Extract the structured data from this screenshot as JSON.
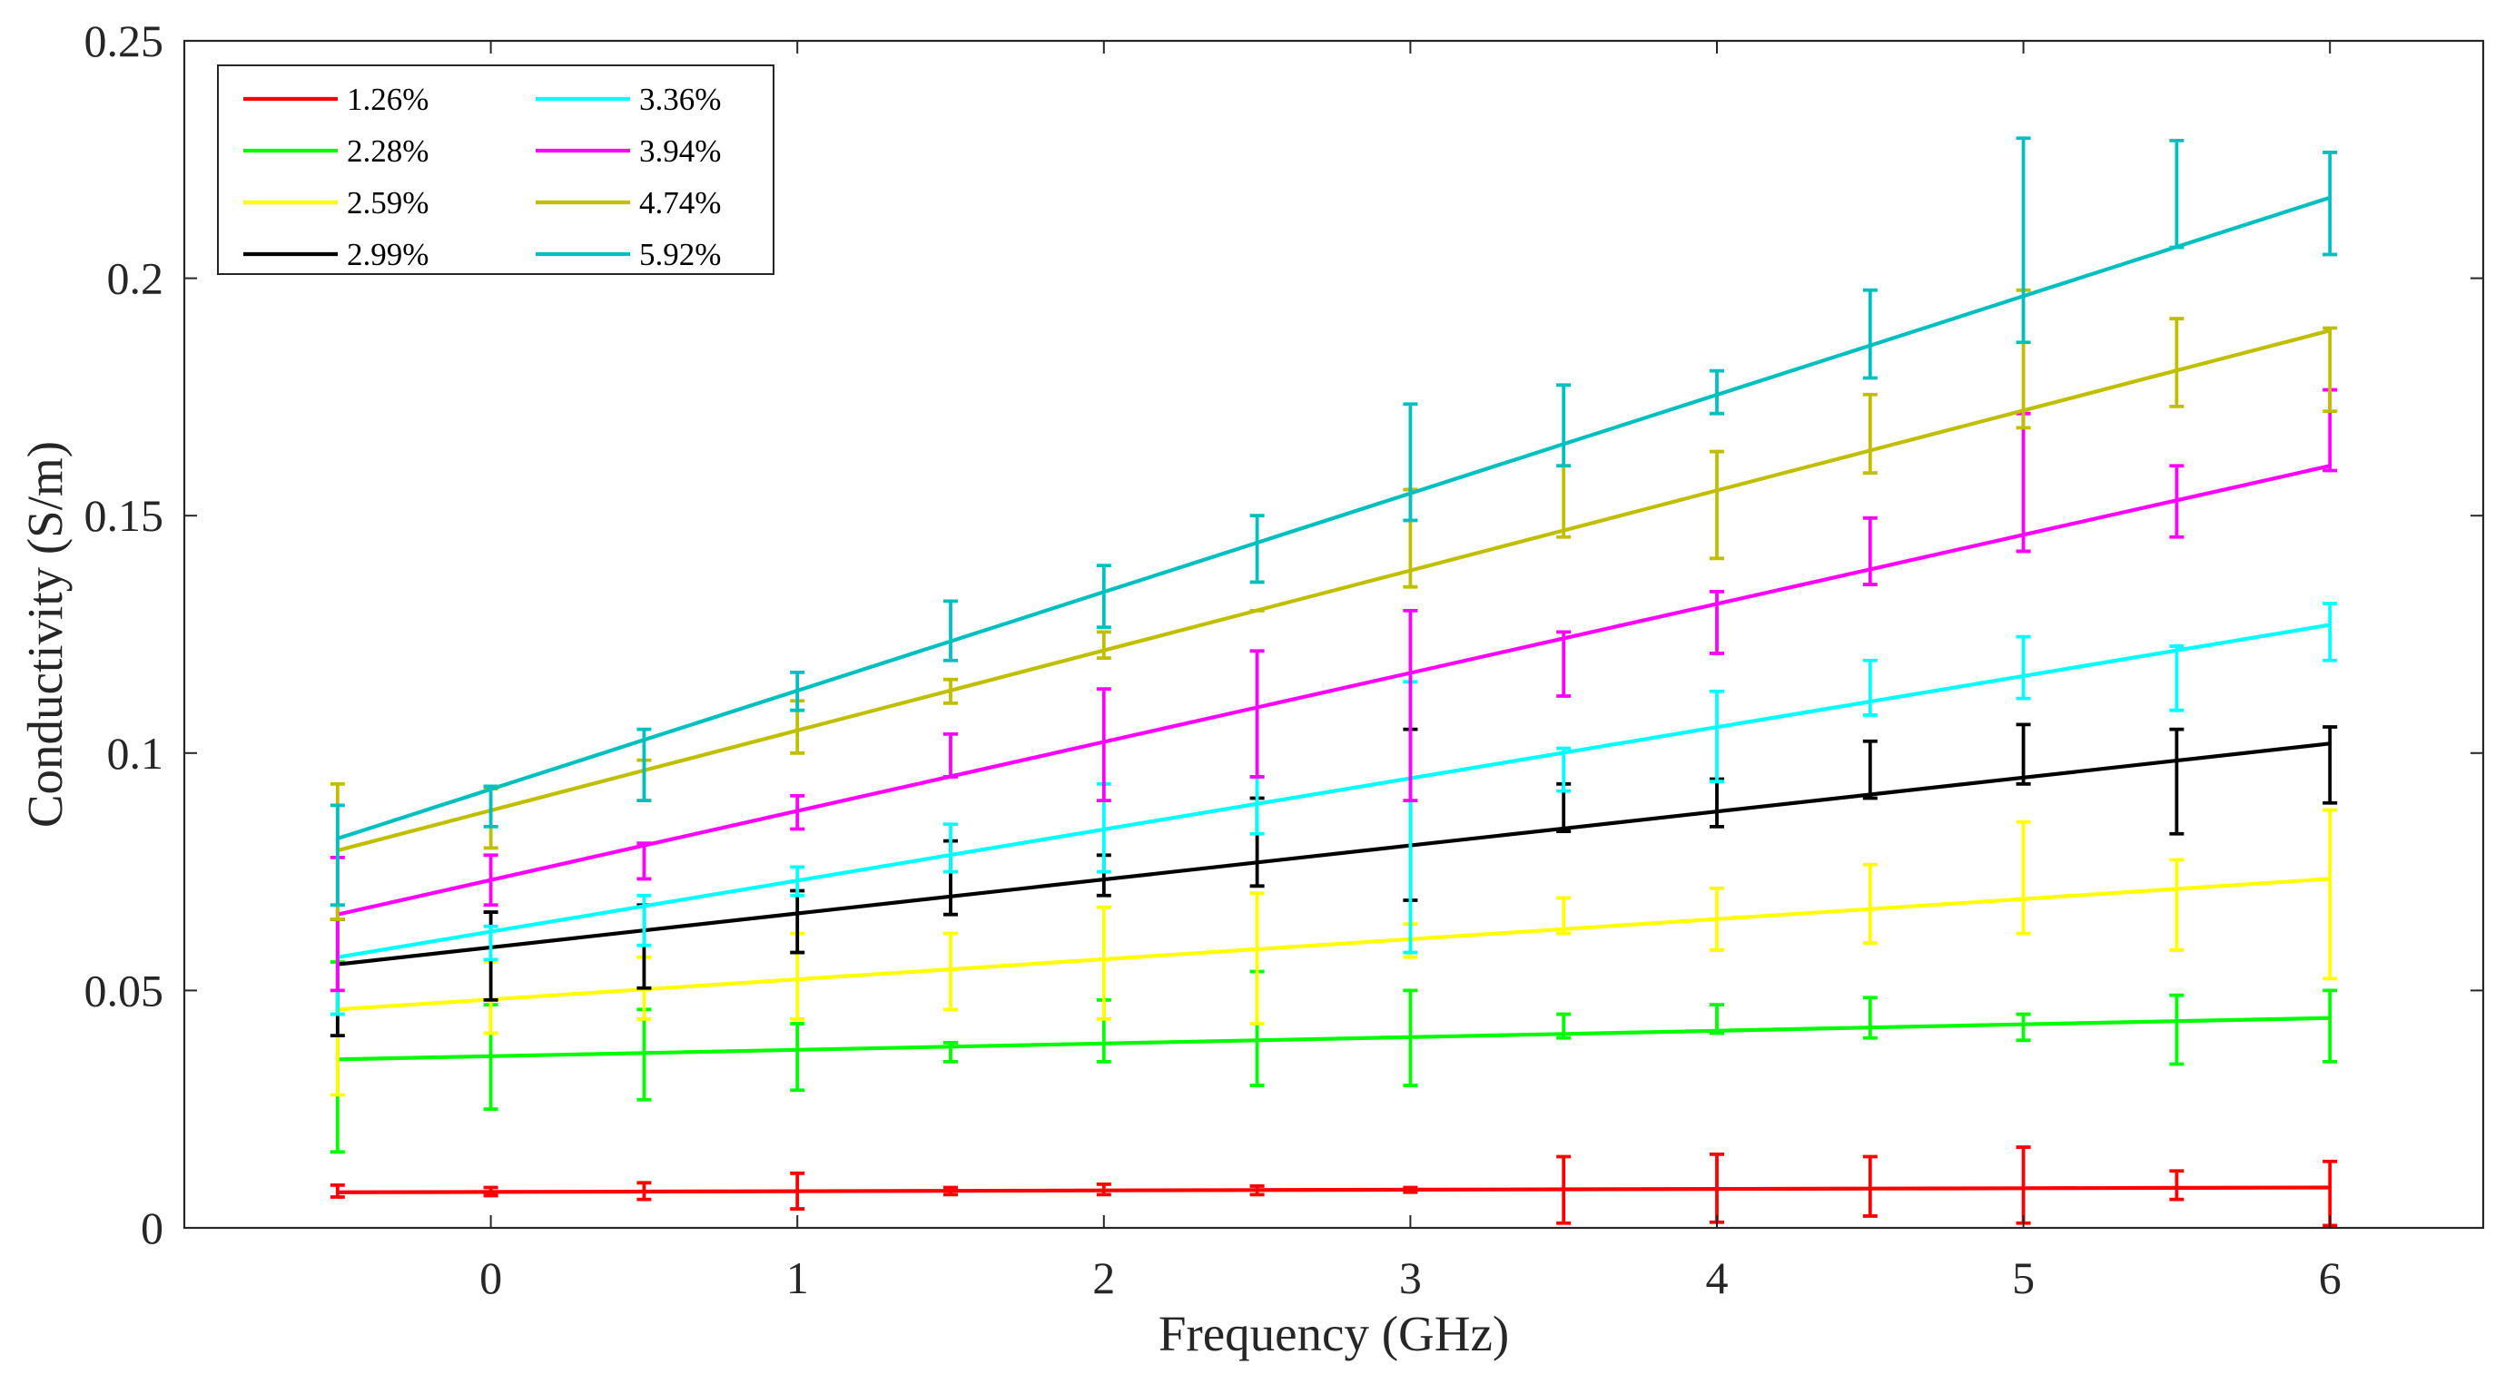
{
  "chart_data": {
    "type": "line",
    "xlabel": "Frequency (GHz)",
    "ylabel": "Conductivity (S/m)",
    "xlim": [
      -1,
      6.5
    ],
    "ylim": [
      0,
      0.25
    ],
    "x_ticks": [
      0,
      1,
      2,
      3,
      4,
      5,
      6
    ],
    "x_tick_labels": [
      "0",
      "1",
      "2",
      "3",
      "4",
      "5",
      "6"
    ],
    "y_ticks": [
      0,
      0.05,
      0.1,
      0.15,
      0.2,
      0.25
    ],
    "y_tick_labels": [
      "0",
      "0.05",
      "0.1",
      "0.15",
      "0.2",
      "0.25"
    ],
    "grid": false,
    "legend_position": "top-left",
    "x": [
      -0.5,
      0,
      0.5,
      1,
      1.5,
      2,
      2.5,
      3,
      3.5,
      4,
      4.5,
      5,
      5.5,
      6
    ],
    "series": [
      {
        "name": "1.26%",
        "color": "#ff0000",
        "y_start": 0.0075,
        "y_end": 0.0085,
        "err_low": [
          0.0065,
          0.0068,
          0.006,
          0.004,
          0.007,
          0.007,
          0.007,
          0.0075,
          0.001,
          0.0012,
          0.0025,
          0.001,
          0.006,
          0.0005
        ],
        "err_high": [
          0.009,
          0.0085,
          0.0095,
          0.0115,
          0.0085,
          0.0092,
          0.0088,
          0.0085,
          0.015,
          0.0155,
          0.015,
          0.017,
          0.012,
          0.014
        ]
      },
      {
        "name": "2.28%",
        "color": "#00ff00",
        "y_start": 0.0355,
        "y_end": 0.0442,
        "err_low": [
          0.016,
          0.025,
          0.027,
          0.029,
          0.035,
          0.035,
          0.03,
          0.03,
          0.04,
          0.041,
          0.04,
          0.0395,
          0.0345,
          0.035
        ],
        "err_high": [
          0.056,
          0.047,
          0.046,
          0.043,
          0.039,
          0.048,
          0.054,
          0.05,
          0.045,
          0.047,
          0.0485,
          0.045,
          0.049,
          0.05
        ]
      },
      {
        "name": "2.59%",
        "color": "#ffff00",
        "y_start": 0.046,
        "y_end": 0.0735,
        "err_low": [
          0.028,
          0.041,
          0.044,
          0.044,
          0.046,
          0.044,
          0.043,
          0.057,
          0.062,
          0.0585,
          0.06,
          0.062,
          0.0585,
          0.0525
        ],
        "err_high": [
          0.065,
          0.056,
          0.057,
          0.062,
          0.062,
          0.0675,
          0.0705,
          0.064,
          0.0695,
          0.0715,
          0.0765,
          0.0855,
          0.0775,
          0.088
        ]
      },
      {
        "name": "2.99%",
        "color": "#000000",
        "y_start": 0.0555,
        "y_end": 0.102,
        "err_low": [
          0.0405,
          0.048,
          0.0505,
          0.058,
          0.066,
          0.07,
          0.072,
          0.069,
          0.0835,
          0.0845,
          0.0905,
          0.0935,
          0.083,
          0.0895
        ],
        "err_high": [
          0.065,
          0.0665,
          0.068,
          0.071,
          0.0815,
          0.0785,
          0.0905,
          0.105,
          0.0935,
          0.0945,
          0.1025,
          0.106,
          0.105,
          0.1055
        ]
      },
      {
        "name": "3.36%",
        "color": "#00ffff",
        "y_start": 0.057,
        "y_end": 0.127,
        "err_low": [
          0.045,
          0.0565,
          0.0595,
          0.07,
          0.075,
          0.075,
          0.083,
          0.058,
          0.092,
          0.094,
          0.108,
          0.1115,
          0.109,
          0.1195
        ],
        "err_high": [
          0.068,
          0.0635,
          0.07,
          0.076,
          0.085,
          0.0935,
          0.095,
          0.115,
          0.101,
          0.113,
          0.1195,
          0.1245,
          0.1225,
          0.1315
        ]
      },
      {
        "name": "3.94%",
        "color": "#ff00ff",
        "y_start": 0.066,
        "y_end": 0.1605,
        "err_low": [
          0.05,
          0.068,
          0.0735,
          0.084,
          0.095,
          0.09,
          0.095,
          0.09,
          0.112,
          0.121,
          0.1355,
          0.1425,
          0.1455,
          0.1595
        ],
        "err_high": [
          0.078,
          0.0785,
          0.081,
          0.091,
          0.104,
          0.1135,
          0.1215,
          0.13,
          0.1255,
          0.134,
          0.1495,
          0.1715,
          0.1605,
          0.1765
        ]
      },
      {
        "name": "4.74%",
        "color": "#bfbf00",
        "y_start": 0.0795,
        "y_end": 0.189,
        "err_low": [
          0.065,
          0.08,
          0.09,
          0.1,
          0.1105,
          0.12,
          0.13,
          0.135,
          0.1455,
          0.141,
          0.159,
          0.1685,
          0.173,
          0.172
        ],
        "err_high": [
          0.0935,
          0.0925,
          0.0985,
          0.111,
          0.1155,
          0.1255,
          0.13,
          0.1555,
          0.1605,
          0.1635,
          0.1755,
          0.1975,
          0.1915,
          0.1895
        ]
      },
      {
        "name": "5.92%",
        "color": "#00bfbf",
        "y_start": 0.082,
        "y_end": 0.217,
        "err_low": [
          0.068,
          0.0845,
          0.09,
          0.109,
          0.1195,
          0.1265,
          0.136,
          0.149,
          0.1605,
          0.1715,
          0.179,
          0.1865,
          0.2065,
          0.205
        ],
        "err_high": [
          0.089,
          0.093,
          0.105,
          0.117,
          0.132,
          0.1395,
          0.15,
          0.1735,
          0.1775,
          0.1805,
          0.1975,
          0.2295,
          0.229,
          0.2265
        ]
      }
    ]
  }
}
